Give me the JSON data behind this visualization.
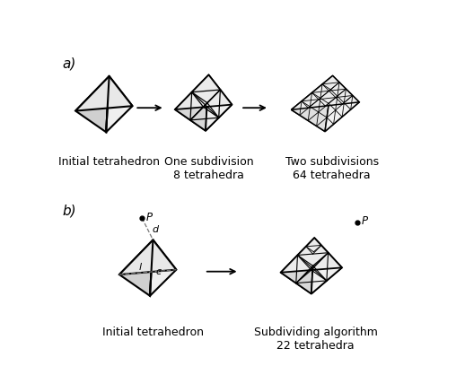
{
  "bg_color": "#ffffff",
  "line_color": "#000000",
  "light_gray": "#cccccc",
  "arrow_color": "#000000",
  "dashed_color": "#777777",
  "label_a": "a)",
  "label_b": "b)",
  "label_initial": "Initial tetrahedron",
  "label_one_sub": "One subdivision\n8 tetrahedra",
  "label_two_sub": "Two subdivisions\n64 tetrahedra",
  "label_initial2": "Initial tetrahedron",
  "label_sub_alg": "Subdividing algorithm\n22 tetrahedra",
  "font_size_label": 9,
  "font_size_ab": 11
}
